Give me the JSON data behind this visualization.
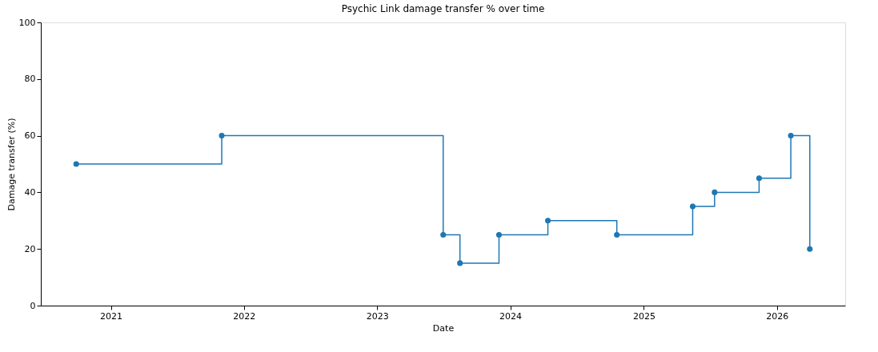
{
  "chart_data": {
    "type": "step",
    "title": "Psychic Link damage transfer % over time",
    "xlabel": "Date",
    "ylabel": "Damage transfer (%)",
    "x": [
      "2020-09-28",
      "2021-11-01",
      "2023-07-01",
      "2023-08-16",
      "2023-12-01",
      "2024-04-13",
      "2024-10-19",
      "2025-05-15",
      "2025-07-14",
      "2025-11-13",
      "2026-02-08",
      "2026-04-01"
    ],
    "series": [
      {
        "color": "#1f77b4",
        "values": [
          50,
          60,
          25,
          15,
          25,
          30,
          25,
          35,
          40,
          45,
          60,
          20
        ]
      }
    ],
    "xlim": [
      "2020-06-23",
      "2026-07-07"
    ],
    "xticks": [
      "2021",
      "2022",
      "2023",
      "2024",
      "2025",
      "2026"
    ],
    "ylim": [
      0,
      100
    ],
    "yticks": [
      0,
      20,
      40,
      60,
      80,
      100
    ],
    "marker": "circle",
    "line_style": "solid",
    "grid": false
  }
}
